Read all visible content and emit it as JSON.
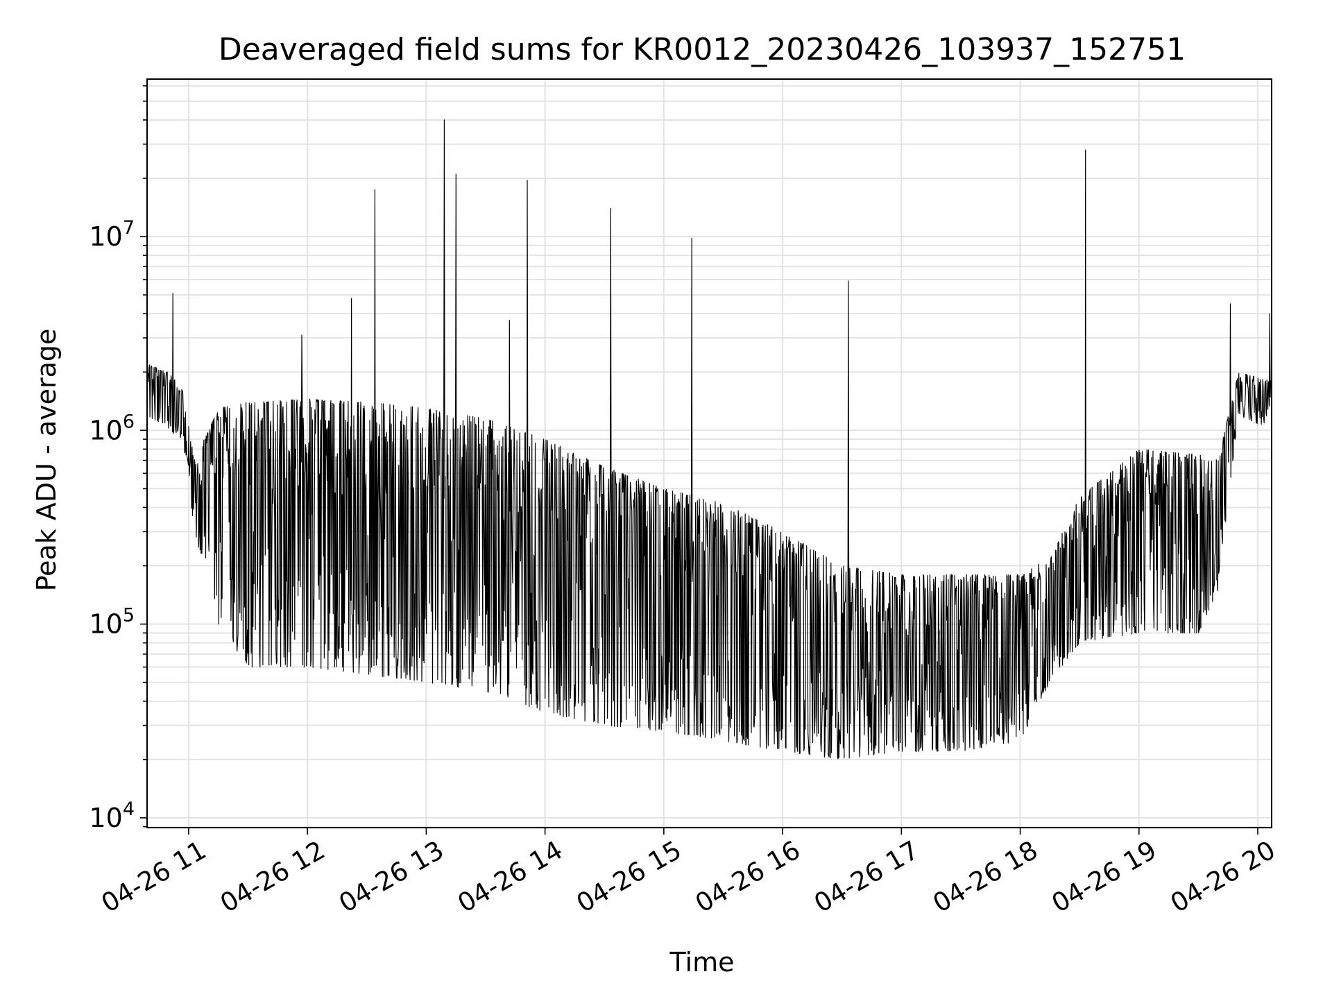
{
  "chart_data": {
    "type": "line",
    "title": "Deaveraged field sums for KR0012_20230426_103937_152751",
    "xlabel": "Time",
    "ylabel": "Peak ADU - average",
    "yscale": "log",
    "grid": true,
    "grid_color": "#e3e3e3",
    "line_color": "#000000",
    "xlim": [
      "2023-04-26 10:39",
      "2023-04-26 20:07"
    ],
    "ylim": [
      8900,
      65000000
    ],
    "x_ticks": [
      {
        "time": "2023-04-26 11:00",
        "label": "04-26 11"
      },
      {
        "time": "2023-04-26 12:00",
        "label": "04-26 12"
      },
      {
        "time": "2023-04-26 13:00",
        "label": "04-26 13"
      },
      {
        "time": "2023-04-26 14:00",
        "label": "04-26 14"
      },
      {
        "time": "2023-04-26 15:00",
        "label": "04-26 15"
      },
      {
        "time": "2023-04-26 16:00",
        "label": "04-26 16"
      },
      {
        "time": "2023-04-26 17:00",
        "label": "04-26 17"
      },
      {
        "time": "2023-04-26 18:00",
        "label": "04-26 18"
      },
      {
        "time": "2023-04-26 19:00",
        "label": "04-26 19"
      },
      {
        "time": "2023-04-26 20:00",
        "label": "04-26 20"
      }
    ],
    "y_ticks": [
      {
        "value": 10000,
        "base": "10",
        "exp": "4"
      },
      {
        "value": 100000,
        "base": "10",
        "exp": "5"
      },
      {
        "value": 1000000,
        "base": "10",
        "exp": "6"
      },
      {
        "value": 10000000,
        "base": "10",
        "exp": "7"
      }
    ],
    "envelope": {
      "time": [
        "2023-04-26 10:39",
        "2023-04-26 10:50",
        "2023-04-26 10:57",
        "2023-04-26 11:03",
        "2023-04-26 11:15",
        "2023-04-26 11:30",
        "2023-04-26 12:00",
        "2023-04-26 12:30",
        "2023-04-26 13:00",
        "2023-04-26 13:30",
        "2023-04-26 14:00",
        "2023-04-26 14:30",
        "2023-04-26 15:00",
        "2023-04-26 15:30",
        "2023-04-26 16:00",
        "2023-04-26 16:30",
        "2023-04-26 17:00",
        "2023-04-26 17:30",
        "2023-04-26 18:00",
        "2023-04-26 18:15",
        "2023-04-26 18:30",
        "2023-04-26 19:00",
        "2023-04-26 19:30",
        "2023-04-26 19:40",
        "2023-04-26 19:50",
        "2023-04-26 20:07"
      ],
      "high": [
        2200000,
        2000000,
        1600000,
        700000,
        1300000,
        1400000,
        1450000,
        1400000,
        1300000,
        1150000,
        900000,
        650000,
        500000,
        420000,
        300000,
        200000,
        180000,
        180000,
        180000,
        220000,
        450000,
        800000,
        750000,
        700000,
        2000000,
        1800000
      ],
      "low": [
        1200000,
        1000000,
        900000,
        300000,
        100000,
        60000,
        60000,
        55000,
        50000,
        45000,
        35000,
        30000,
        28000,
        25000,
        22000,
        20000,
        22000,
        22000,
        25000,
        50000,
        80000,
        90000,
        90000,
        150000,
        1200000,
        1000000
      ]
    },
    "spikes": [
      {
        "time": "2023-04-26 10:52",
        "value": 5100000
      },
      {
        "time": "2023-04-26 11:57",
        "value": 3100000
      },
      {
        "time": "2023-04-26 12:22",
        "value": 4800000
      },
      {
        "time": "2023-04-26 12:34",
        "value": 17500000
      },
      {
        "time": "2023-04-26 13:09",
        "value": 40000000
      },
      {
        "time": "2023-04-26 13:15",
        "value": 21000000
      },
      {
        "time": "2023-04-26 13:42",
        "value": 3700000
      },
      {
        "time": "2023-04-26 13:51",
        "value": 19500000
      },
      {
        "time": "2023-04-26 14:33",
        "value": 14000000
      },
      {
        "time": "2023-04-26 15:14",
        "value": 9800000
      },
      {
        "time": "2023-04-26 16:33",
        "value": 5900000
      },
      {
        "time": "2023-04-26 18:33",
        "value": 28000000
      },
      {
        "time": "2023-04-26 19:46",
        "value": 4500000
      },
      {
        "time": "2023-04-26 20:06",
        "value": 4000000
      }
    ]
  }
}
